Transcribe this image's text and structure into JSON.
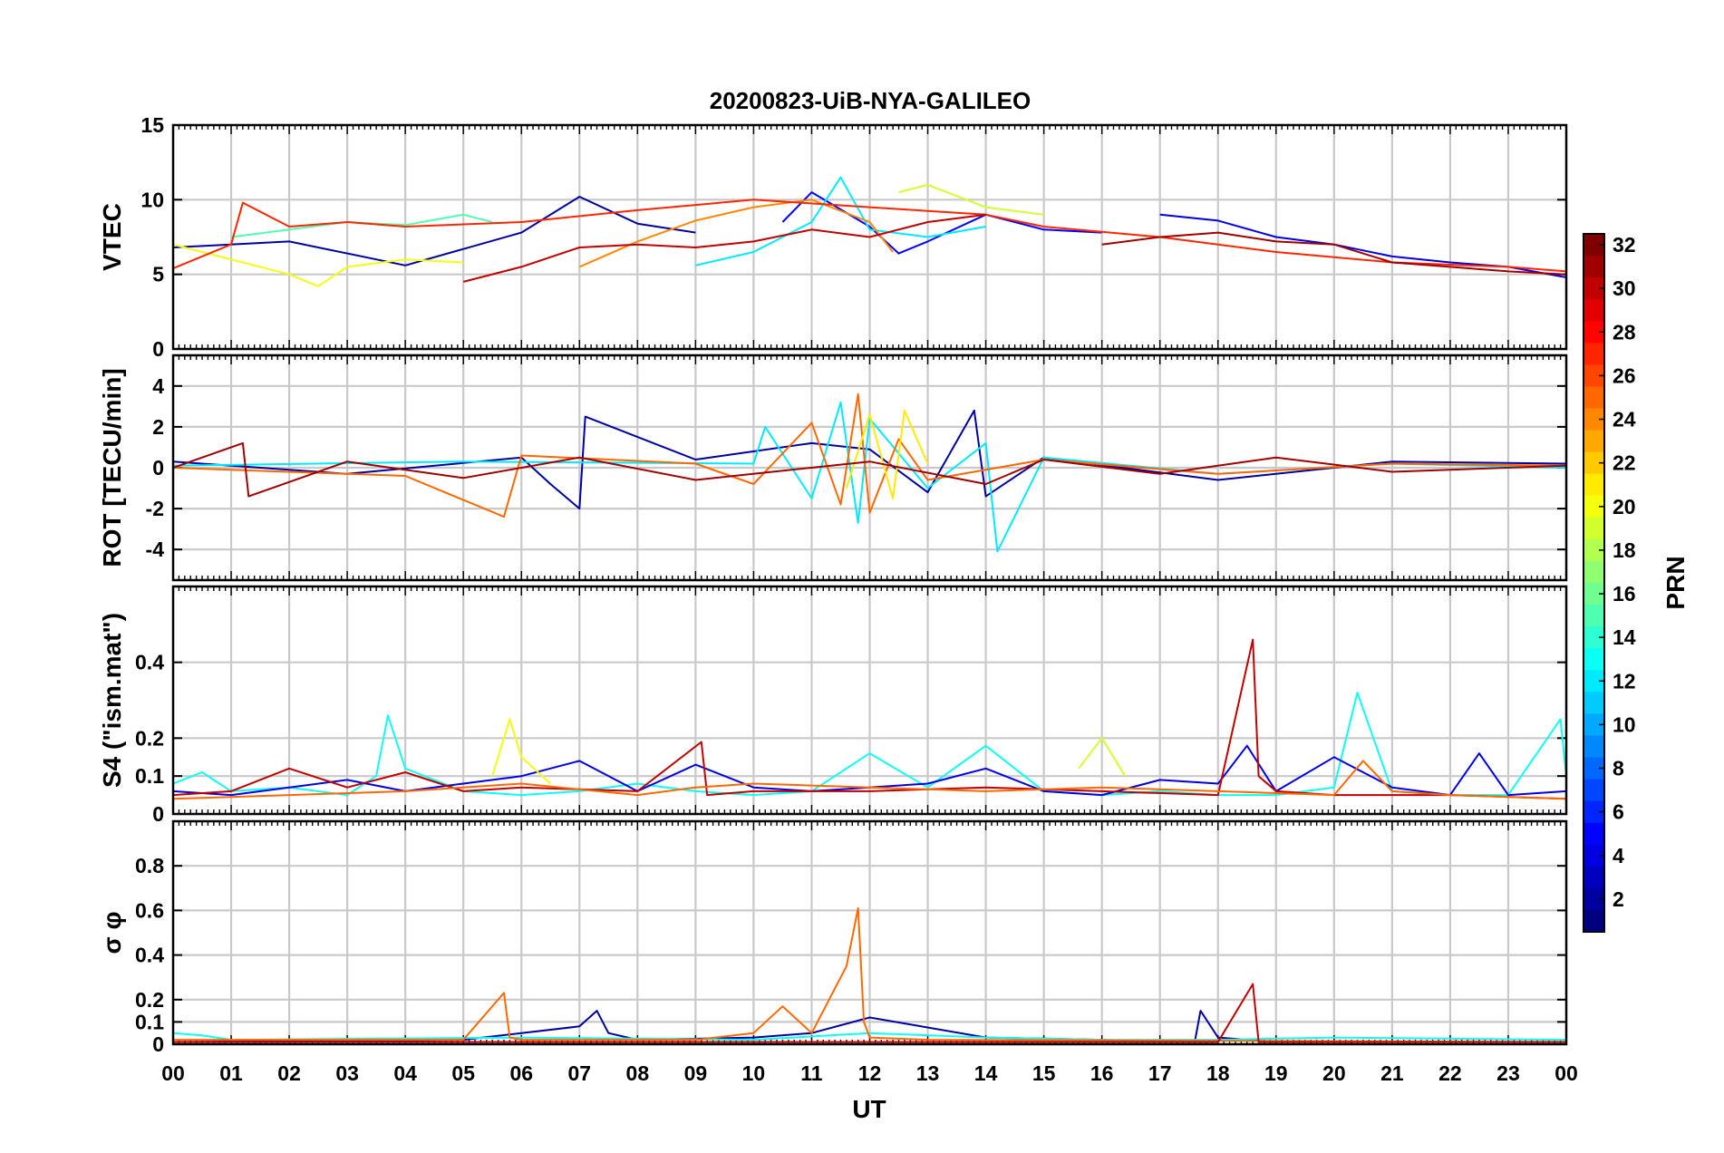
{
  "chart_data": {
    "type": "line",
    "title": "20200823-UiB-NYA-GALILEO",
    "xlabel": "UT",
    "x_tick_labels": [
      "00",
      "01",
      "02",
      "03",
      "04",
      "05",
      "06",
      "07",
      "08",
      "09",
      "10",
      "11",
      "12",
      "13",
      "14",
      "15",
      "16",
      "17",
      "18",
      "19",
      "20",
      "21",
      "22",
      "23",
      "00"
    ],
    "xlim": [
      0,
      24
    ],
    "grid": true,
    "colorbar": {
      "label": "PRN",
      "colormap": "jet",
      "range": [
        1,
        32
      ],
      "tick_labels": [
        "2",
        "4",
        "6",
        "8",
        "10",
        "12",
        "14",
        "16",
        "18",
        "20",
        "22",
        "24",
        "26",
        "28",
        "30",
        "32"
      ]
    },
    "panels": [
      {
        "ylabel": "VTEC",
        "ylim": [
          0,
          15
        ],
        "y_tick_labels": [
          "0",
          "5",
          "10",
          "15"
        ],
        "series": [
          {
            "prn": 2,
            "x": [
              0,
              2,
              4,
              6,
              7,
              8,
              9
            ],
            "y": [
              6.8,
              7.2,
              5.6,
              7.8,
              10.2,
              8.4,
              7.8
            ]
          },
          {
            "prn": 5,
            "x": [
              10.5,
              11,
              12,
              12.5,
              13,
              14,
              15,
              16
            ],
            "y": [
              8.5,
              10.5,
              8.2,
              6.4,
              7.2,
              9.0,
              8.0,
              7.8
            ]
          },
          {
            "prn": 4,
            "x": [
              17,
              18,
              19,
              20,
              21,
              22,
              23,
              24
            ],
            "y": [
              9.0,
              8.6,
              7.5,
              7.0,
              6.2,
              5.8,
              5.5,
              4.8
            ]
          },
          {
            "prn": 12,
            "x": [
              9,
              10,
              11,
              11.5,
              12,
              13,
              14
            ],
            "y": [
              5.6,
              6.5,
              8.5,
              11.5,
              8.0,
              7.5,
              8.2
            ]
          },
          {
            "prn": 15,
            "x": [
              1,
              2,
              3,
              4,
              5,
              5.5
            ],
            "y": [
              7.5,
              8.0,
              8.5,
              8.3,
              9.0,
              8.5
            ]
          },
          {
            "prn": 20,
            "x": [
              0,
              1,
              2,
              2.5,
              3,
              4,
              5
            ],
            "y": [
              7.0,
              6.0,
              5.0,
              4.2,
              5.5,
              6.0,
              5.8
            ]
          },
          {
            "prn": 19,
            "x": [
              12.5,
              13,
              14,
              15
            ],
            "y": [
              10.5,
              11.0,
              9.5,
              9.0
            ]
          },
          {
            "prn": 24,
            "x": [
              7,
              8,
              9,
              10,
              11,
              12,
              12.4
            ],
            "y": [
              5.5,
              7.2,
              8.6,
              9.5,
              10.0,
              8.5,
              6.5
            ]
          },
          {
            "prn": 27,
            "x": [
              0,
              1,
              1.2,
              2,
              3,
              4,
              6,
              8,
              10,
              12,
              14,
              15,
              17,
              19,
              21,
              23,
              24
            ],
            "y": [
              5.4,
              7.0,
              9.8,
              8.2,
              8.5,
              8.2,
              8.5,
              9.3,
              10.0,
              9.5,
              9.0,
              8.2,
              7.5,
              6.5,
              5.8,
              5.5,
              5.2
            ]
          },
          {
            "prn": 30,
            "x": [
              5,
              6,
              7,
              8,
              9,
              10,
              11,
              12,
              13,
              14
            ],
            "y": [
              4.5,
              5.5,
              6.8,
              7.0,
              6.8,
              7.2,
              8.0,
              7.5,
              8.5,
              9.0
            ]
          },
          {
            "prn": 31,
            "x": [
              16,
              17,
              18,
              19,
              20,
              21,
              22,
              23,
              24
            ],
            "y": [
              7.0,
              7.5,
              7.8,
              7.2,
              7.0,
              5.8,
              5.5,
              5.2,
              5.0
            ]
          }
        ]
      },
      {
        "ylabel": "ROT [TECU/min]",
        "ylim": [
          -5.5,
          5.5
        ],
        "y_tick_labels": [
          "-4",
          "-2",
          "0",
          "2",
          "4"
        ],
        "series": [
          {
            "prn": 2,
            "x": [
              0,
              3,
              6,
              6.5,
              7,
              7.1,
              9,
              11,
              12,
              13,
              13.8,
              14,
              15,
              18,
              21,
              24
            ],
            "y": [
              0.3,
              -0.3,
              0.5,
              -0.8,
              -2.0,
              2.5,
              0.4,
              1.2,
              0.9,
              -1.2,
              2.8,
              -1.4,
              0.5,
              -0.6,
              0.3,
              0.2
            ]
          },
          {
            "prn": 12,
            "x": [
              0,
              5,
              10,
              10.2,
              11,
              11.5,
              11.8,
              12,
              13,
              14,
              14.2,
              15,
              18,
              21,
              24
            ],
            "y": [
              0.1,
              0.3,
              0.2,
              2.0,
              -1.5,
              3.2,
              -2.7,
              2.4,
              -1.0,
              1.2,
              -4.1,
              0.5,
              -0.3,
              0.2,
              0.0
            ]
          },
          {
            "prn": 25,
            "x": [
              0,
              4,
              5.7,
              6,
              9,
              10,
              11,
              11.5,
              11.8,
              12,
              12.5,
              13,
              15,
              18,
              21,
              24
            ],
            "y": [
              0.0,
              -0.4,
              -2.4,
              0.6,
              0.2,
              -0.8,
              2.2,
              -1.8,
              3.6,
              -2.2,
              1.4,
              -0.6,
              0.4,
              -0.3,
              0.2,
              0.1
            ]
          },
          {
            "prn": 21,
            "x": [
              11.6,
              12,
              12.4,
              12.6,
              13
            ],
            "y": [
              -1.0,
              2.6,
              -1.5,
              2.8,
              0.2
            ]
          },
          {
            "prn": 31,
            "x": [
              0,
              1.2,
              1.3,
              3,
              5,
              7,
              9,
              12,
              14,
              15,
              17,
              19,
              21,
              24
            ],
            "y": [
              0.0,
              1.2,
              -1.4,
              0.3,
              -0.5,
              0.5,
              -0.6,
              0.3,
              -0.8,
              0.4,
              -0.3,
              0.5,
              -0.2,
              0.1
            ]
          }
        ]
      },
      {
        "ylabel": "S4 (\"ism.mat\")",
        "ylim": [
          0,
          0.6
        ],
        "y_tick_labels": [
          "0",
          "0.1",
          "0.2",
          "0.4"
        ],
        "series": [
          {
            "prn": 13,
            "x": [
              0,
              0.5,
              1,
              2,
              3,
              3.5,
              3.7,
              4,
              5,
              6,
              7,
              8,
              9,
              10,
              11,
              12,
              13,
              14,
              15,
              16,
              17,
              18,
              19,
              20,
              20.4,
              21,
              22,
              23,
              23.9,
              24
            ],
            "y": [
              0.08,
              0.11,
              0.06,
              0.07,
              0.05,
              0.1,
              0.26,
              0.12,
              0.06,
              0.05,
              0.06,
              0.08,
              0.06,
              0.05,
              0.06,
              0.16,
              0.07,
              0.18,
              0.06,
              0.05,
              0.06,
              0.05,
              0.05,
              0.07,
              0.32,
              0.06,
              0.05,
              0.05,
              0.25,
              0.1
            ]
          },
          {
            "prn": 4,
            "x": [
              0,
              1,
              2,
              3,
              4,
              5,
              6,
              7,
              8,
              9,
              10,
              11,
              12,
              13,
              14,
              15,
              16,
              17,
              18,
              18.5,
              19,
              20,
              21,
              22,
              22.5,
              23,
              24
            ],
            "y": [
              0.06,
              0.05,
              0.07,
              0.09,
              0.06,
              0.08,
              0.1,
              0.14,
              0.06,
              0.13,
              0.07,
              0.06,
              0.07,
              0.08,
              0.12,
              0.06,
              0.05,
              0.09,
              0.08,
              0.18,
              0.06,
              0.15,
              0.07,
              0.05,
              0.16,
              0.05,
              0.06
            ]
          },
          {
            "prn": 20,
            "x": [
              5.5,
              5.8,
              6,
              6.5
            ],
            "y": [
              0.1,
              0.25,
              0.15,
              0.08
            ]
          },
          {
            "prn": 19,
            "x": [
              15.6,
              16,
              16.4
            ],
            "y": [
              0.12,
              0.2,
              0.1
            ]
          },
          {
            "prn": 30,
            "x": [
              0,
              1,
              2,
              3,
              4,
              5,
              6,
              8,
              9.1,
              9.2,
              10,
              12,
              14,
              16,
              18,
              18.6,
              18.7,
              19,
              20,
              22,
              24
            ],
            "y": [
              0.05,
              0.06,
              0.12,
              0.07,
              0.11,
              0.06,
              0.07,
              0.06,
              0.19,
              0.05,
              0.06,
              0.06,
              0.07,
              0.06,
              0.05,
              0.46,
              0.1,
              0.06,
              0.05,
              0.05,
              0.04
            ]
          },
          {
            "prn": 25,
            "x": [
              0,
              2,
              4,
              6,
              8,
              9,
              10,
              12,
              14,
              16,
              18,
              20,
              20.5,
              21,
              22,
              24
            ],
            "y": [
              0.04,
              0.05,
              0.06,
              0.08,
              0.05,
              0.07,
              0.08,
              0.07,
              0.06,
              0.07,
              0.06,
              0.05,
              0.14,
              0.06,
              0.05,
              0.04
            ]
          }
        ]
      },
      {
        "ylabel": "σ φ",
        "ylim": [
          0,
          1
        ],
        "y_tick_labels": [
          "0",
          "0.1",
          "0.2",
          "0.4",
          "0.6",
          "0.8"
        ],
        "series": [
          {
            "prn": 2,
            "x": [
              0,
              5,
              6,
              7,
              7.3,
              7.5,
              8,
              10,
              11,
              12,
              14,
              16,
              17.6,
              17.7,
              18,
              19,
              22,
              24
            ],
            "y": [
              0.01,
              0.02,
              0.05,
              0.08,
              0.15,
              0.05,
              0.02,
              0.03,
              0.05,
              0.12,
              0.03,
              0.02,
              0.01,
              0.15,
              0.03,
              0.01,
              0.01,
              0.01
            ]
          },
          {
            "prn": 13,
            "x": [
              0,
              0.5,
              1,
              6,
              10,
              12,
              14,
              16,
              18,
              20,
              24
            ],
            "y": [
              0.05,
              0.04,
              0.02,
              0.03,
              0.02,
              0.05,
              0.03,
              0.02,
              0.02,
              0.03,
              0.02
            ]
          },
          {
            "prn": 25,
            "x": [
              0,
              5,
              5.7,
              5.8,
              6,
              9,
              10,
              10.5,
              11,
              11.6,
              11.8,
              11.9,
              12,
              13,
              24
            ],
            "y": [
              0.02,
              0.02,
              0.23,
              0.03,
              0.02,
              0.02,
              0.05,
              0.17,
              0.05,
              0.35,
              0.61,
              0.1,
              0.03,
              0.02,
              0.01
            ]
          },
          {
            "prn": 30,
            "x": [
              0,
              18,
              18.6,
              18.7,
              19,
              24
            ],
            "y": [
              0.01,
              0.01,
              0.27,
              0.01,
              0.01,
              0.01
            ]
          }
        ]
      }
    ]
  }
}
